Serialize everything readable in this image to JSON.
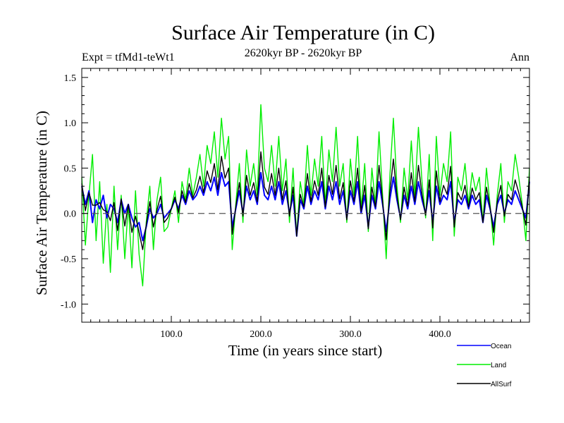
{
  "chart_data": {
    "type": "line",
    "title": "Surface Air Temperature (in C)",
    "subtitle": "2620kyr BP - 2620kyr BP",
    "expt_label": "Expt = tfMd1-teWt1",
    "period_label": "Ann",
    "xlabel": "Time (in years since start)",
    "ylabel": "Surface Air Temperature (in C)",
    "xlim": [
      0,
      500
    ],
    "ylim": [
      -1.2,
      1.6
    ],
    "xticks": [
      100,
      200,
      300,
      400
    ],
    "xtick_labels": [
      "100.0",
      "200.0",
      "300.0",
      "400.0"
    ],
    "yticks": [
      -1.0,
      -0.5,
      0.0,
      0.5,
      1.0,
      1.5
    ],
    "ytick_labels": [
      "-1.0",
      "-0.5",
      "0.0",
      "0.5",
      "1.0",
      "1.5"
    ],
    "zero_line": 0.0,
    "grid": false,
    "legend_position": "bottom-right",
    "series": [
      {
        "name": "Land",
        "color": "#00ee00",
        "x": [
          0,
          4,
          8,
          12,
          16,
          20,
          24,
          28,
          32,
          36,
          40,
          44,
          48,
          52,
          56,
          60,
          64,
          68,
          72,
          76,
          80,
          84,
          88,
          92,
          96,
          100,
          104,
          108,
          112,
          116,
          120,
          124,
          128,
          132,
          136,
          140,
          144,
          148,
          152,
          156,
          160,
          164,
          168,
          172,
          176,
          180,
          184,
          188,
          192,
          196,
          200,
          204,
          208,
          212,
          216,
          220,
          224,
          228,
          232,
          236,
          240,
          244,
          248,
          252,
          256,
          260,
          264,
          268,
          272,
          276,
          280,
          284,
          288,
          292,
          296,
          300,
          304,
          308,
          312,
          316,
          320,
          324,
          328,
          332,
          336,
          340,
          344,
          348,
          352,
          356,
          360,
          364,
          368,
          372,
          376,
          380,
          384,
          388,
          392,
          396,
          400,
          404,
          408,
          412,
          416,
          420,
          424,
          428,
          432,
          436,
          440,
          444,
          448,
          452,
          456,
          460,
          464,
          468,
          472,
          476,
          480,
          484,
          488,
          492,
          496,
          500
        ],
        "values": [
          0.4,
          -0.35,
          0.2,
          0.65,
          -0.3,
          0.35,
          -0.55,
          0.1,
          -0.65,
          0.3,
          -0.4,
          0.2,
          -0.5,
          0.1,
          -0.6,
          0.25,
          -0.45,
          -0.8,
          -0.1,
          0.3,
          -0.4,
          0.15,
          0.4,
          -0.2,
          -0.15,
          0.05,
          0.25,
          -0.1,
          0.35,
          0.15,
          0.5,
          0.2,
          0.4,
          0.65,
          0.3,
          0.75,
          0.55,
          0.9,
          0.4,
          1.05,
          0.6,
          0.85,
          -0.4,
          0.1,
          0.55,
          -0.1,
          0.7,
          0.3,
          0.55,
          0.2,
          1.2,
          0.5,
          0.35,
          0.75,
          0.3,
          0.85,
          0.25,
          0.6,
          -0.1,
          0.5,
          -0.25,
          0.35,
          0.1,
          0.75,
          0.2,
          0.6,
          0.3,
          0.85,
          0.1,
          0.7,
          0.35,
          0.95,
          0.3,
          0.55,
          -0.1,
          0.6,
          0.2,
          0.85,
          0.05,
          0.55,
          -0.2,
          0.5,
          0.1,
          0.9,
          0.2,
          -0.5,
          0.4,
          1.05,
          0.3,
          -0.1,
          0.5,
          0.15,
          0.8,
          0.2,
          0.95,
          0.35,
          -0.05,
          0.65,
          -0.3,
          0.85,
          0.2,
          0.55,
          0.35,
          0.9,
          -0.25,
          0.4,
          0.25,
          0.55,
          0.1,
          0.45,
          0.25,
          0.4,
          -0.1,
          0.5,
          0.1,
          -0.35,
          0.2,
          0.55,
          -0.1,
          0.35,
          0.25,
          0.65,
          0.4,
          0.1,
          -0.3,
          0.5
        ]
      },
      {
        "name": "Ocean",
        "color": "#0000ff",
        "x": [
          0,
          4,
          8,
          12,
          16,
          20,
          24,
          28,
          32,
          36,
          40,
          44,
          48,
          52,
          56,
          60,
          64,
          68,
          72,
          76,
          80,
          84,
          88,
          92,
          96,
          100,
          104,
          108,
          112,
          116,
          120,
          124,
          128,
          132,
          136,
          140,
          144,
          148,
          152,
          156,
          160,
          164,
          168,
          172,
          176,
          180,
          184,
          188,
          192,
          196,
          200,
          204,
          208,
          212,
          216,
          220,
          224,
          228,
          232,
          236,
          240,
          244,
          248,
          252,
          256,
          260,
          264,
          268,
          272,
          276,
          280,
          284,
          288,
          292,
          296,
          300,
          304,
          308,
          312,
          316,
          320,
          324,
          328,
          332,
          336,
          340,
          344,
          348,
          352,
          356,
          360,
          364,
          368,
          372,
          376,
          380,
          384,
          388,
          392,
          396,
          400,
          404,
          408,
          412,
          416,
          420,
          424,
          428,
          432,
          436,
          440,
          444,
          448,
          452,
          456,
          460,
          464,
          468,
          472,
          476,
          480,
          484,
          488,
          492,
          496,
          500
        ],
        "values": [
          0.3,
          0.1,
          0.25,
          -0.1,
          0.15,
          0.05,
          0.2,
          -0.05,
          0.1,
          0.05,
          -0.1,
          0.15,
          0.0,
          0.1,
          -0.05,
          -0.15,
          -0.1,
          -0.3,
          -0.15,
          0.05,
          -0.05,
          0.0,
          0.1,
          -0.05,
          0.0,
          0.05,
          0.15,
          0.05,
          0.2,
          0.1,
          0.25,
          0.15,
          0.2,
          0.3,
          0.2,
          0.35,
          0.25,
          0.4,
          0.2,
          0.45,
          0.3,
          0.35,
          -0.15,
          0.05,
          0.25,
          0.0,
          0.3,
          0.15,
          0.25,
          0.1,
          0.45,
          0.2,
          0.15,
          0.3,
          0.15,
          0.35,
          0.1,
          0.25,
          0.0,
          0.2,
          -0.25,
          0.15,
          0.05,
          0.3,
          0.1,
          0.25,
          0.15,
          0.35,
          0.05,
          0.3,
          0.15,
          0.35,
          0.1,
          0.25,
          -0.05,
          0.25,
          0.1,
          0.35,
          0.0,
          0.2,
          -0.15,
          0.2,
          0.05,
          0.35,
          0.1,
          -0.2,
          0.15,
          0.4,
          0.15,
          -0.05,
          0.2,
          0.05,
          0.3,
          0.1,
          0.35,
          0.15,
          0.0,
          0.25,
          -0.1,
          0.3,
          0.1,
          0.2,
          0.15,
          0.35,
          -0.1,
          0.15,
          0.1,
          0.2,
          0.05,
          0.2,
          0.1,
          0.15,
          -0.1,
          0.2,
          0.05,
          -0.15,
          0.1,
          0.2,
          0.0,
          0.15,
          0.1,
          0.25,
          0.15,
          0.05,
          -0.05,
          0.35
        ]
      },
      {
        "name": "AllSurf",
        "color": "#000000",
        "x": [
          0,
          4,
          8,
          12,
          16,
          20,
          24,
          28,
          32,
          36,
          40,
          44,
          48,
          52,
          56,
          60,
          64,
          68,
          72,
          76,
          80,
          84,
          88,
          92,
          96,
          100,
          104,
          108,
          112,
          116,
          120,
          124,
          128,
          132,
          136,
          140,
          144,
          148,
          152,
          156,
          160,
          164,
          168,
          172,
          176,
          180,
          184,
          188,
          192,
          196,
          200,
          204,
          208,
          212,
          216,
          220,
          224,
          228,
          232,
          236,
          240,
          244,
          248,
          252,
          256,
          260,
          264,
          268,
          272,
          276,
          280,
          284,
          288,
          292,
          296,
          300,
          304,
          308,
          312,
          316,
          320,
          324,
          328,
          332,
          336,
          340,
          344,
          348,
          352,
          356,
          360,
          364,
          368,
          372,
          376,
          380,
          384,
          388,
          392,
          396,
          400,
          404,
          408,
          412,
          416,
          420,
          424,
          428,
          432,
          436,
          440,
          444,
          448,
          452,
          456,
          460,
          464,
          468,
          472,
          476,
          480,
          484,
          488,
          492,
          496,
          500
        ],
        "values": [
          0.33,
          0.03,
          0.23,
          0.09,
          0.09,
          0.12,
          0.04,
          0.02,
          -0.08,
          0.12,
          -0.19,
          0.16,
          -0.14,
          0.1,
          -0.21,
          -0.03,
          -0.21,
          -0.4,
          -0.13,
          0.13,
          -0.15,
          0.04,
          0.19,
          -0.1,
          -0.05,
          0.05,
          0.18,
          0.01,
          0.25,
          0.12,
          0.33,
          0.17,
          0.26,
          0.41,
          0.23,
          0.47,
          0.34,
          0.55,
          0.26,
          0.63,
          0.39,
          0.5,
          -0.23,
          0.07,
          0.34,
          -0.03,
          0.42,
          0.2,
          0.34,
          0.13,
          0.68,
          0.29,
          0.21,
          0.44,
          0.2,
          0.5,
          0.15,
          0.36,
          -0.03,
          0.29,
          -0.25,
          0.21,
          0.07,
          0.44,
          0.13,
          0.36,
          0.2,
          0.5,
          0.07,
          0.42,
          0.21,
          0.53,
          0.16,
          0.34,
          -0.07,
          0.36,
          0.13,
          0.5,
          0.02,
          0.31,
          -0.17,
          0.29,
          0.07,
          0.53,
          0.13,
          -0.29,
          0.23,
          0.6,
          0.2,
          -0.07,
          0.29,
          0.08,
          0.45,
          0.13,
          0.53,
          0.21,
          -0.02,
          0.37,
          -0.16,
          0.47,
          0.13,
          0.31,
          0.21,
          0.52,
          -0.15,
          0.23,
          0.15,
          0.31,
          0.07,
          0.28,
          0.15,
          0.23,
          -0.1,
          0.29,
          0.07,
          -0.21,
          0.13,
          0.31,
          -0.03,
          0.21,
          0.15,
          0.37,
          0.23,
          0.07,
          -0.13,
          0.4
        ]
      }
    ],
    "legend_order": [
      "Ocean",
      "Land",
      "AllSurf"
    ]
  }
}
